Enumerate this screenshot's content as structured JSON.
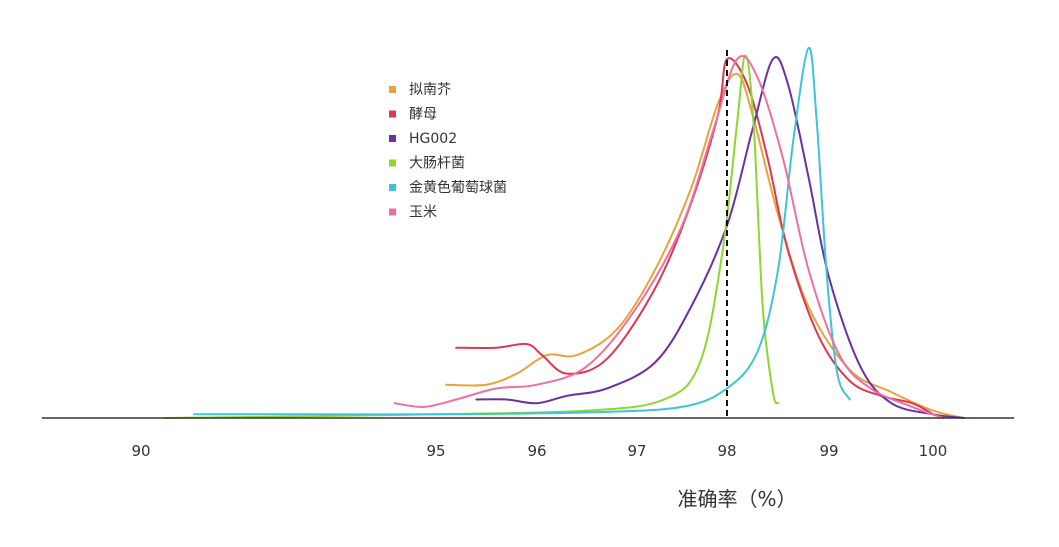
{
  "chart_data": {
    "type": "line",
    "title": "",
    "xlabel": "准确率（%）",
    "ylabel": "",
    "x_ticks": [
      "90",
      "95",
      "96",
      "97",
      "98",
      "99",
      "100"
    ],
    "xlim": [
      88.0,
      100.8
    ],
    "grid": false,
    "legend_position": "top-left",
    "reference_line": {
      "x": 98,
      "style": "dashed",
      "color": "#111111"
    },
    "series": [
      {
        "name": "拟南芥",
        "color": "#E8A33D",
        "points": [
          [
            95.1,
            0.09
          ],
          [
            95.5,
            0.09
          ],
          [
            95.8,
            0.12
          ],
          [
            96.1,
            0.17
          ],
          [
            96.4,
            0.17
          ],
          [
            96.8,
            0.24
          ],
          [
            97.2,
            0.4
          ],
          [
            97.6,
            0.62
          ],
          [
            97.9,
            0.85
          ],
          [
            98.1,
            0.93
          ],
          [
            98.25,
            0.82
          ],
          [
            98.5,
            0.55
          ],
          [
            98.8,
            0.3
          ],
          [
            99.2,
            0.13
          ],
          [
            99.6,
            0.07
          ],
          [
            100.0,
            0.02
          ],
          [
            100.3,
            0.0
          ]
        ]
      },
      {
        "name": "酵母",
        "color": "#D93A52",
        "points": [
          [
            95.2,
            0.19
          ],
          [
            95.6,
            0.19
          ],
          [
            95.9,
            0.2
          ],
          [
            96.05,
            0.17
          ],
          [
            96.3,
            0.12
          ],
          [
            96.7,
            0.16
          ],
          [
            97.2,
            0.35
          ],
          [
            97.6,
            0.58
          ],
          [
            97.9,
            0.82
          ],
          [
            98.0,
            0.97
          ],
          [
            98.2,
            0.9
          ],
          [
            98.4,
            0.7
          ],
          [
            98.6,
            0.45
          ],
          [
            98.9,
            0.22
          ],
          [
            99.2,
            0.1
          ],
          [
            99.5,
            0.06
          ],
          [
            99.8,
            0.04
          ],
          [
            100.0,
            0.01
          ]
        ]
      },
      {
        "name": "HG002",
        "color": "#6B2FA0",
        "points": [
          [
            95.4,
            0.05
          ],
          [
            95.7,
            0.05
          ],
          [
            96.0,
            0.04
          ],
          [
            96.3,
            0.06
          ],
          [
            96.7,
            0.08
          ],
          [
            97.2,
            0.15
          ],
          [
            97.6,
            0.3
          ],
          [
            98.0,
            0.52
          ],
          [
            98.25,
            0.78
          ],
          [
            98.45,
            0.97
          ],
          [
            98.6,
            0.9
          ],
          [
            98.8,
            0.65
          ],
          [
            99.0,
            0.38
          ],
          [
            99.3,
            0.14
          ],
          [
            99.6,
            0.04
          ],
          [
            100.0,
            0.01
          ],
          [
            100.3,
            0.0
          ]
        ]
      },
      {
        "name": "大肠杆菌",
        "color": "#8FD62E",
        "points": [
          [
            90.4,
            0.0
          ],
          [
            93.0,
            0.005
          ],
          [
            95.0,
            0.01
          ],
          [
            96.5,
            0.02
          ],
          [
            97.3,
            0.05
          ],
          [
            97.7,
            0.15
          ],
          [
            97.95,
            0.45
          ],
          [
            98.1,
            0.8
          ],
          [
            98.18,
            0.98
          ],
          [
            98.26,
            0.8
          ],
          [
            98.35,
            0.3
          ],
          [
            98.45,
            0.07
          ],
          [
            98.5,
            0.04
          ]
        ]
      },
      {
        "name": "金黄色葡萄球菌",
        "color": "#3EC3D8",
        "points": [
          [
            90.9,
            0.01
          ],
          [
            93.0,
            0.01
          ],
          [
            95.0,
            0.01
          ],
          [
            96.5,
            0.015
          ],
          [
            97.5,
            0.03
          ],
          [
            98.0,
            0.08
          ],
          [
            98.3,
            0.18
          ],
          [
            98.5,
            0.4
          ],
          [
            98.65,
            0.75
          ],
          [
            98.8,
            1.0
          ],
          [
            98.88,
            0.8
          ],
          [
            98.98,
            0.38
          ],
          [
            99.08,
            0.12
          ],
          [
            99.2,
            0.05
          ]
        ]
      },
      {
        "name": "玉米",
        "color": "#EE6FA0",
        "points": [
          [
            94.3,
            0.04
          ],
          [
            94.8,
            0.03
          ],
          [
            95.2,
            0.05
          ],
          [
            95.6,
            0.08
          ],
          [
            96.0,
            0.09
          ],
          [
            96.5,
            0.14
          ],
          [
            97.0,
            0.3
          ],
          [
            97.5,
            0.52
          ],
          [
            97.85,
            0.78
          ],
          [
            98.1,
            0.97
          ],
          [
            98.3,
            0.92
          ],
          [
            98.55,
            0.7
          ],
          [
            98.8,
            0.4
          ],
          [
            99.1,
            0.17
          ],
          [
            99.4,
            0.08
          ],
          [
            99.8,
            0.03
          ],
          [
            100.1,
            0.0
          ]
        ]
      }
    ]
  }
}
